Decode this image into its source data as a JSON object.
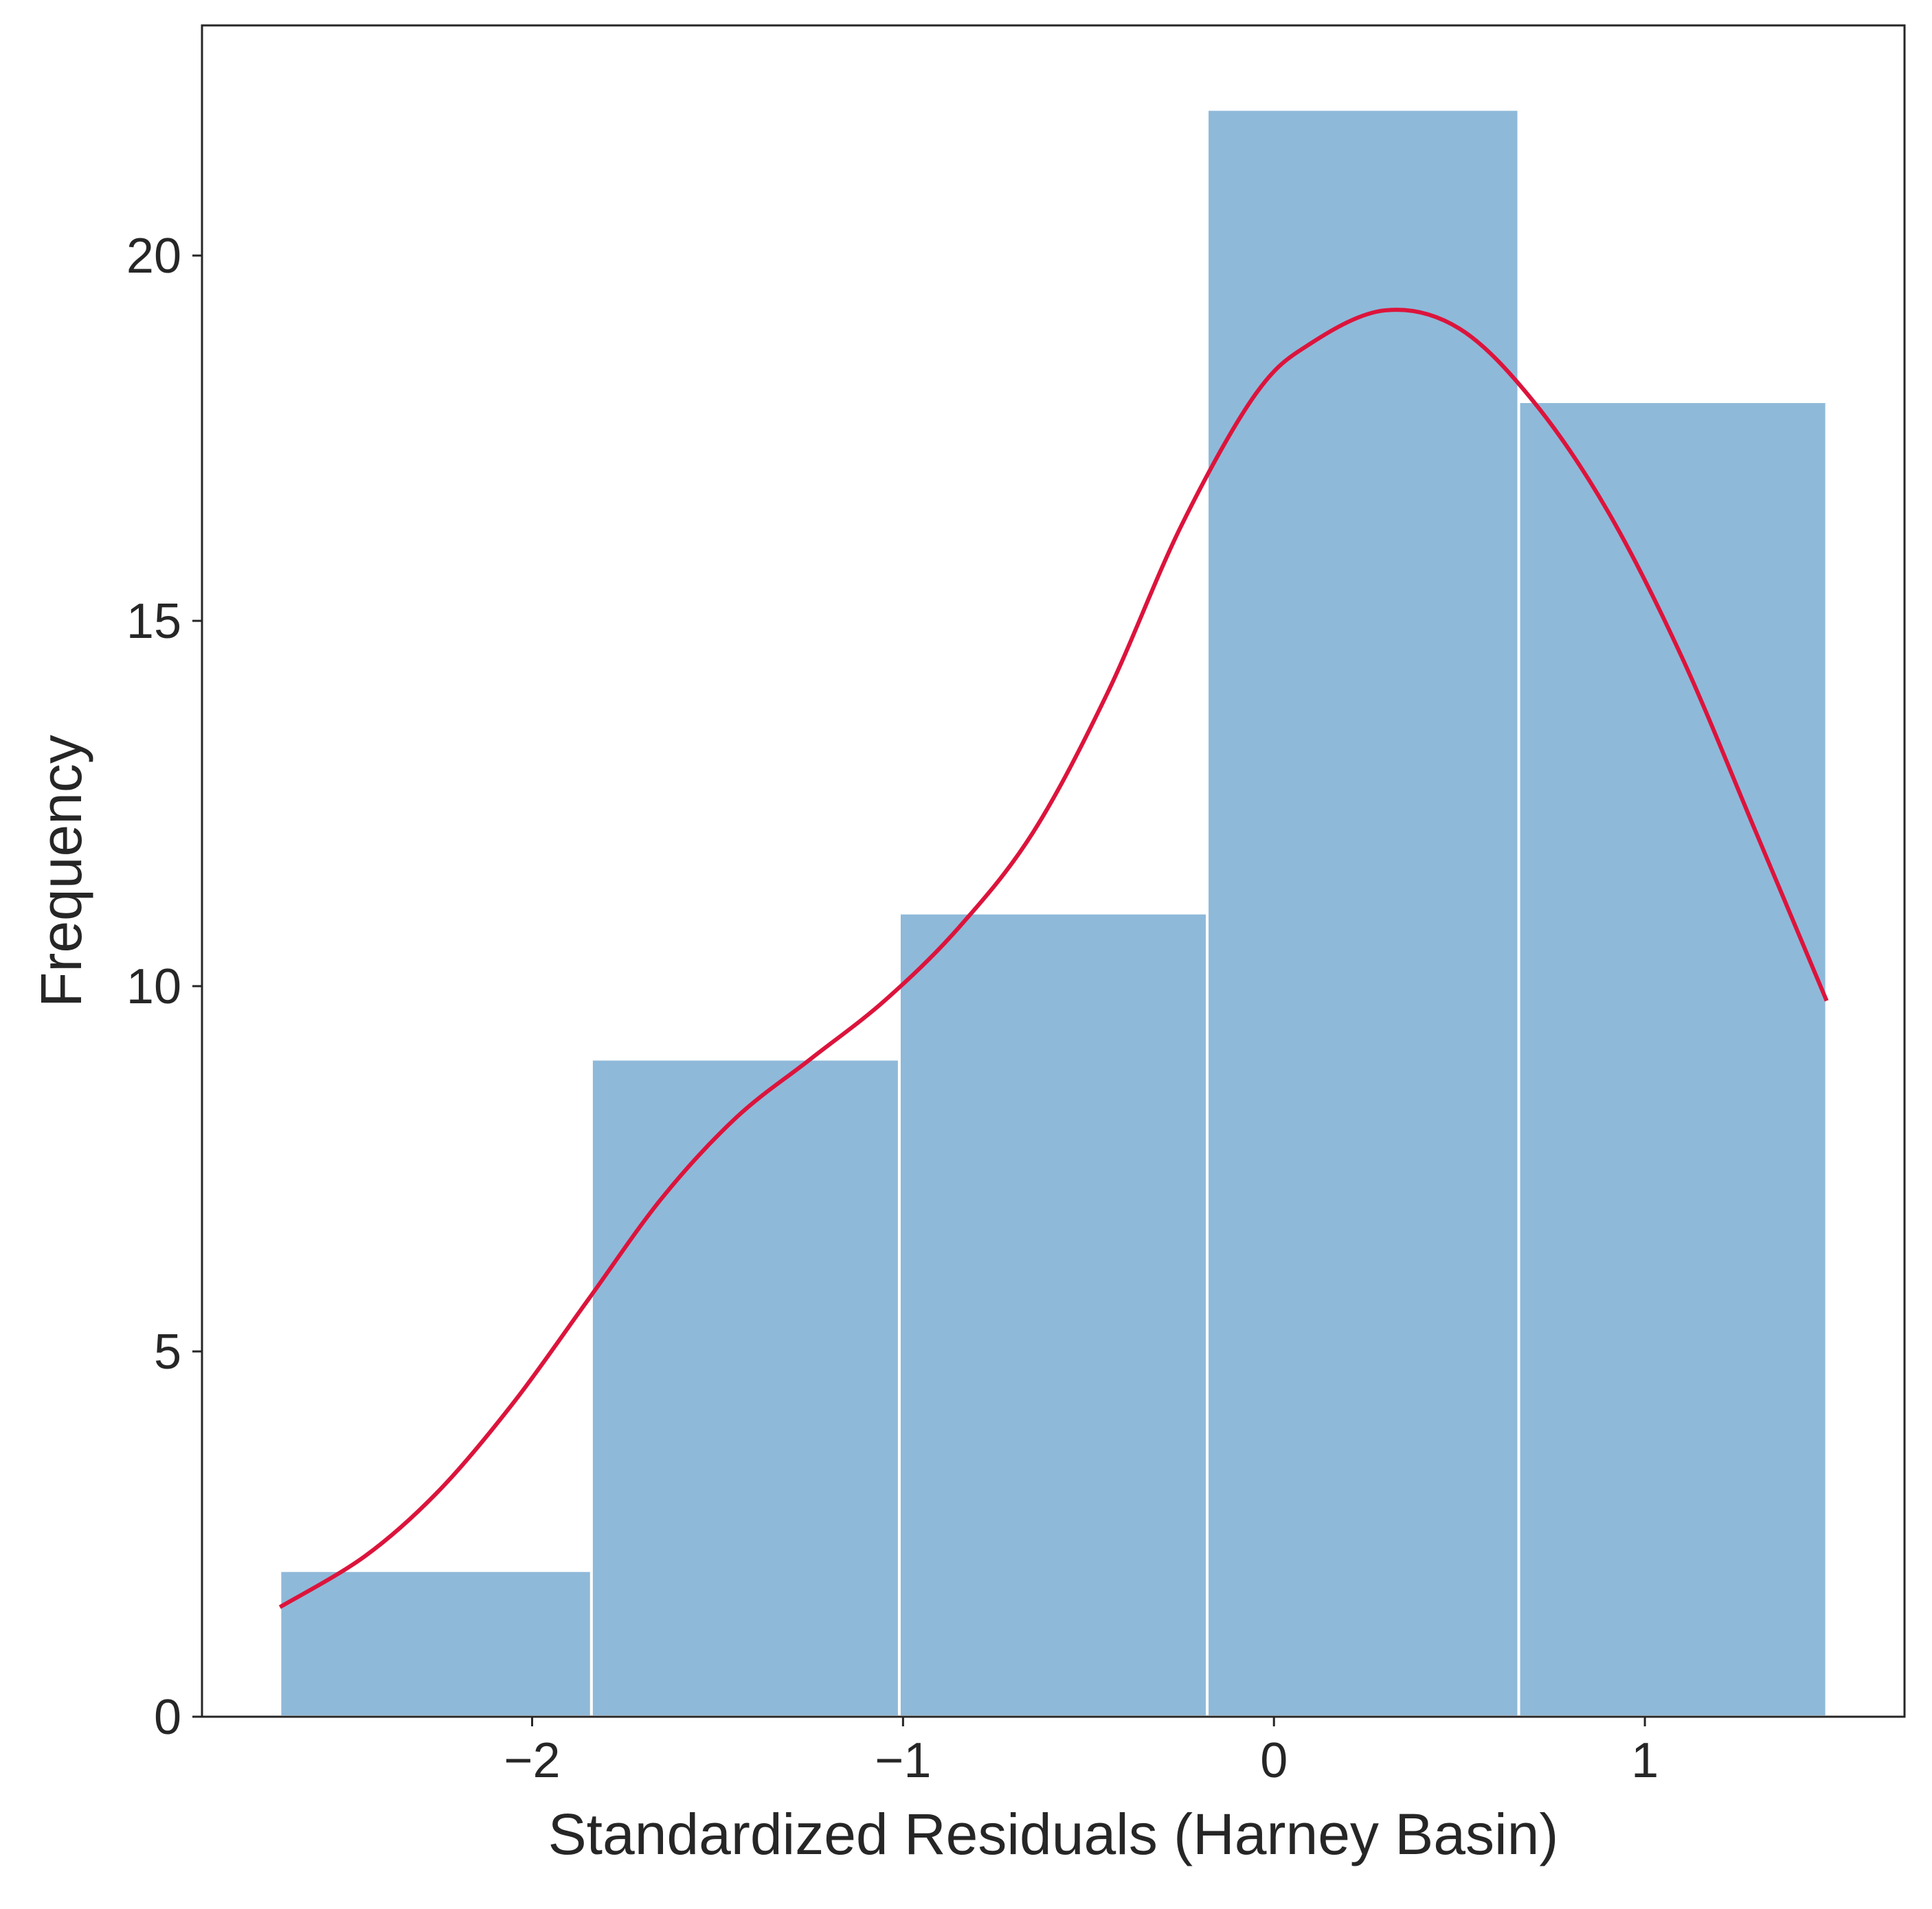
{
  "chart_data": {
    "type": "bar",
    "subtype": "histogram",
    "title": "",
    "xlabel": "Standardized Residuals (Harney Basin)",
    "ylabel": "Frequency",
    "xlim": [
      -2.89,
      1.7
    ],
    "ylim": [
      0,
      23.15
    ],
    "x_ticks": [
      -2,
      -1,
      0,
      1
    ],
    "x_tick_labels": [
      "−2",
      "−1",
      "0",
      "1"
    ],
    "y_ticks": [
      0,
      5,
      10,
      15,
      20
    ],
    "y_tick_labels": [
      "0",
      "5",
      "10",
      "15",
      "20"
    ],
    "bins": [
      {
        "x0": -2.68,
        "x1": -1.84,
        "value": 2
      },
      {
        "x0": -1.84,
        "x1": -1.01,
        "value": 9
      },
      {
        "x0": -1.01,
        "x1": -0.18,
        "value": 11
      },
      {
        "x0": -0.18,
        "x1": 0.66,
        "value": 22
      },
      {
        "x0": 0.66,
        "x1": 1.49,
        "value": 18
      }
    ],
    "kde": {
      "x": [
        -2.68,
        -2.45,
        -2.25,
        -2.05,
        -1.85,
        -1.65,
        -1.45,
        -1.25,
        -1.05,
        -0.85,
        -0.65,
        -0.45,
        -0.25,
        -0.05,
        0.1,
        0.3,
        0.5,
        0.7,
        0.9,
        1.1,
        1.3,
        1.49
      ],
      "y": [
        1.5,
        2.2,
        3.1,
        4.3,
        5.7,
        7.1,
        8.2,
        9.0,
        9.8,
        10.8,
        12.1,
        14.0,
        16.3,
        18.1,
        18.8,
        19.25,
        19.0,
        18.0,
        16.5,
        14.5,
        12.1,
        9.8
      ]
    },
    "grid": false,
    "legend": "none",
    "colors": {
      "bar_fill": "#8fb9d9",
      "bar_edge": "#ffffff",
      "kde_line": "#dc143c",
      "axis": "#262626"
    }
  }
}
